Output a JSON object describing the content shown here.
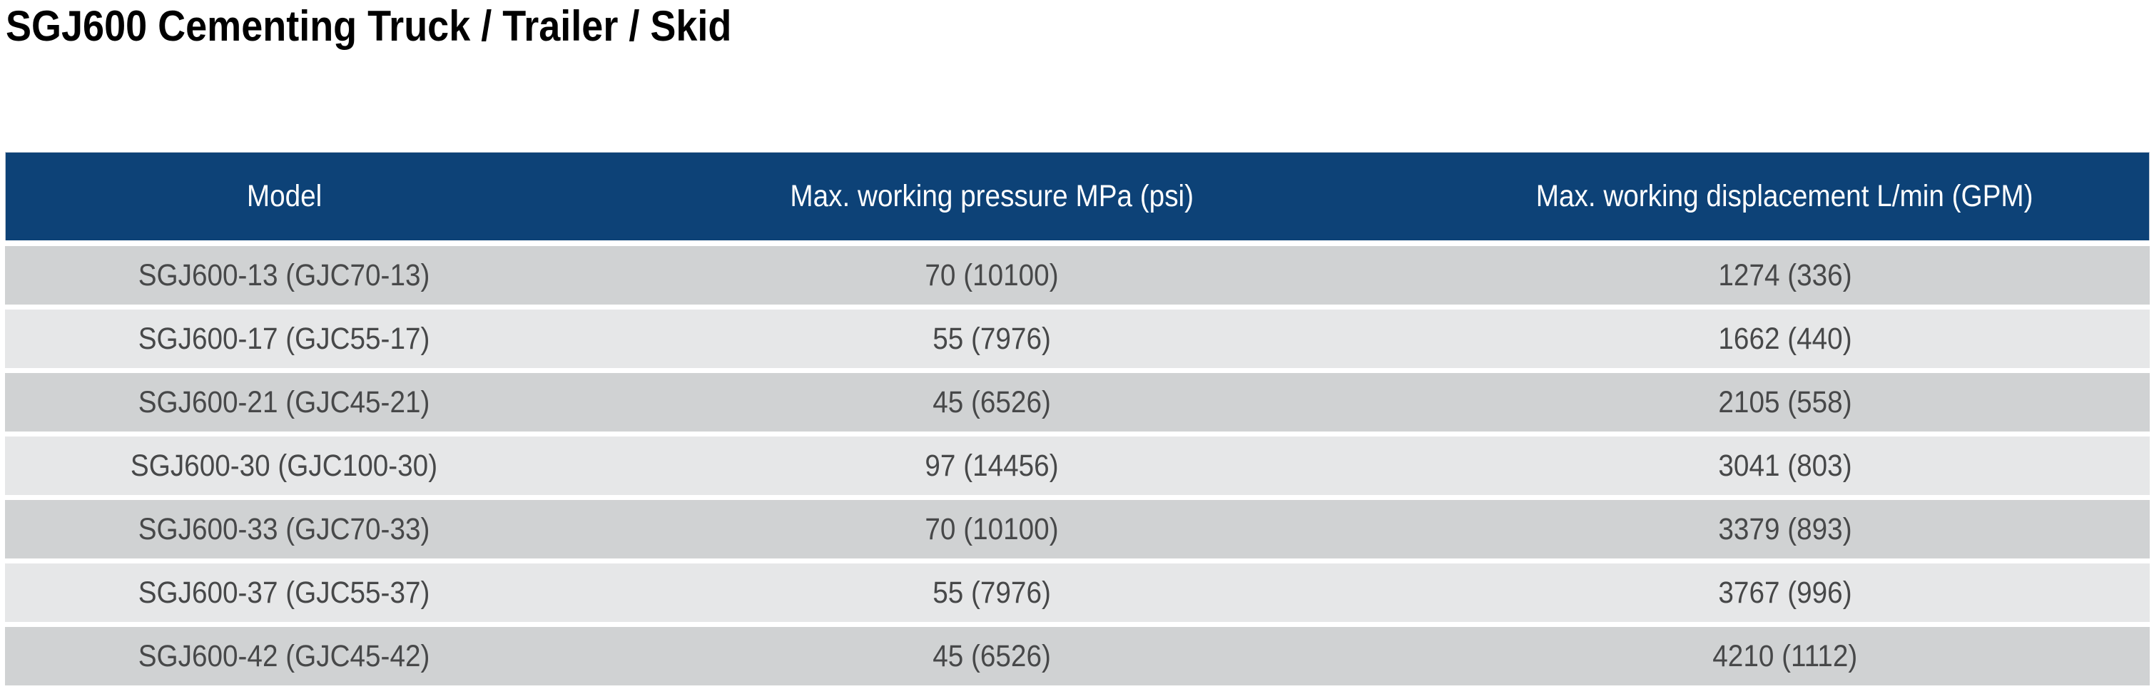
{
  "page": {
    "title": "SGJ600 Cementing Truck / Trailer / Skid"
  },
  "table": {
    "columns": [
      "Model",
      "Max. working pressure MPa (psi)",
      "Max. working displacement L/min (GPM)"
    ],
    "rows": [
      {
        "model": "SGJ600-13 (GJC70-13)",
        "pressure": "70 (10100)",
        "displacement": "1274 (336)"
      },
      {
        "model": "SGJ600-17 (GJC55-17)",
        "pressure": "55 (7976)",
        "displacement": "1662 (440)"
      },
      {
        "model": "SGJ600-21 (GJC45-21)",
        "pressure": "45 (6526)",
        "displacement": "2105 (558)"
      },
      {
        "model": "SGJ600-30 (GJC100-30)",
        "pressure": "97 (14456)",
        "displacement": "3041 (803)"
      },
      {
        "model": "SGJ600-33 (GJC70-33)",
        "pressure": "70 (10100)",
        "displacement": "3379 (893)"
      },
      {
        "model": "SGJ600-37 (GJC55-37)",
        "pressure": "55 (7976)",
        "displacement": "3767 (996)"
      },
      {
        "model": "SGJ600-42 (GJC45-42)",
        "pressure": "45 (6526)",
        "displacement": "4210 (1112)"
      }
    ]
  },
  "theme": {
    "header_bg": "#0d4277",
    "header_text": "#ffffff",
    "row_dark": "#d0d2d3",
    "row_light": "#e6e7e8",
    "row_text": "#474849",
    "title_color": "#000000"
  }
}
